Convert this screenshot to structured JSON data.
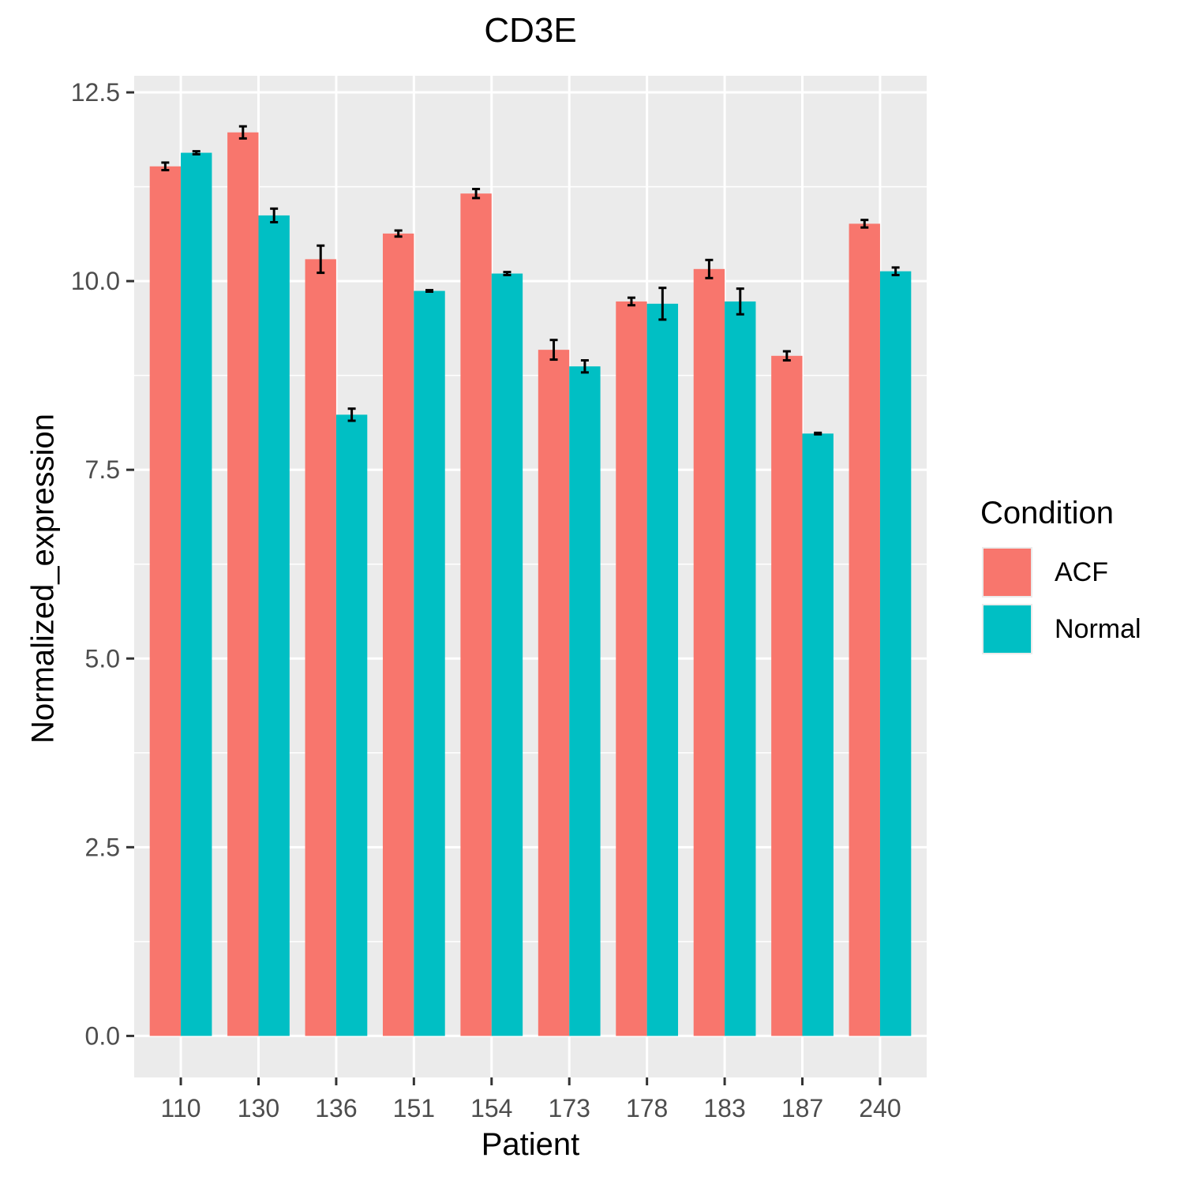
{
  "chart_data": {
    "type": "bar",
    "title": "CD3E",
    "xlabel": "Patient",
    "ylabel": "Normalized_expression",
    "categories": [
      "110",
      "130",
      "136",
      "151",
      "154",
      "173",
      "178",
      "183",
      "187",
      "240"
    ],
    "series": [
      {
        "name": "ACF",
        "color": "#F8766D",
        "values": [
          11.52,
          11.97,
          10.29,
          10.63,
          11.16,
          9.09,
          9.73,
          10.16,
          9.01,
          10.76
        ],
        "errors": [
          0.05,
          0.08,
          0.18,
          0.04,
          0.06,
          0.13,
          0.05,
          0.12,
          0.06,
          0.05
        ]
      },
      {
        "name": "Normal",
        "color": "#00BFC4",
        "values": [
          11.7,
          10.87,
          8.23,
          9.87,
          10.1,
          8.87,
          9.7,
          9.73,
          7.98,
          10.13
        ],
        "errors": [
          0.02,
          0.09,
          0.08,
          0.01,
          0.02,
          0.08,
          0.21,
          0.17,
          0.01,
          0.05
        ]
      }
    ],
    "yticks": [
      "0.0",
      "2.5",
      "5.0",
      "7.5",
      "10.0",
      "12.5"
    ],
    "ylim": [
      -0.55,
      12.72
    ],
    "grid": true,
    "legend": {
      "title": "Condition",
      "position": "right"
    },
    "panel_background": "#EBEBEB",
    "error_bar_color": "#000000"
  }
}
